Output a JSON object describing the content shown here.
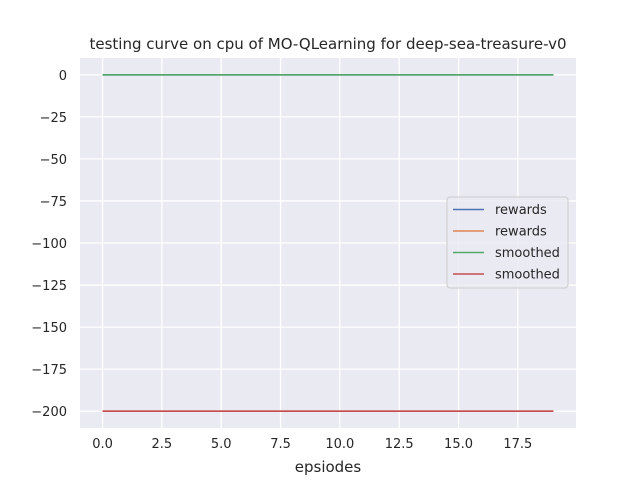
{
  "chart_data": {
    "type": "line",
    "title": "testing curve on cpu of MO-QLearning for deep-sea-treasure-v0",
    "xlabel": "epsiodes",
    "ylabel": "",
    "xlim": [
      -0.95,
      19.95
    ],
    "ylim": [
      -210,
      10
    ],
    "xticks": [
      0,
      2.5,
      5,
      7.5,
      10,
      12.5,
      15,
      17.5
    ],
    "xtick_labels": [
      "0.0",
      "2.5",
      "5.0",
      "7.5",
      "10.0",
      "12.5",
      "15.0",
      "17.5"
    ],
    "yticks": [
      0,
      -25,
      -50,
      -75,
      -100,
      -125,
      -150,
      -175,
      -200
    ],
    "ytick_labels": [
      "0",
      "−25",
      "−50",
      "−75",
      "−100",
      "−125",
      "−150",
      "−175",
      "−200"
    ],
    "grid": true,
    "legend_position": "center-right",
    "series": [
      {
        "name": "rewards",
        "color": "#4c72b0",
        "x": [
          0,
          19
        ],
        "y": [
          0,
          0
        ]
      },
      {
        "name": "rewards",
        "color": "#dd8452",
        "x": [
          0,
          19
        ],
        "y": [
          -200,
          -200
        ]
      },
      {
        "name": "smoothed",
        "color": "#55a868",
        "x": [
          0,
          19
        ],
        "y": [
          0,
          0
        ]
      },
      {
        "name": "smoothed",
        "color": "#c44e52",
        "x": [
          0,
          19
        ],
        "y": [
          -200,
          -200
        ]
      }
    ]
  }
}
